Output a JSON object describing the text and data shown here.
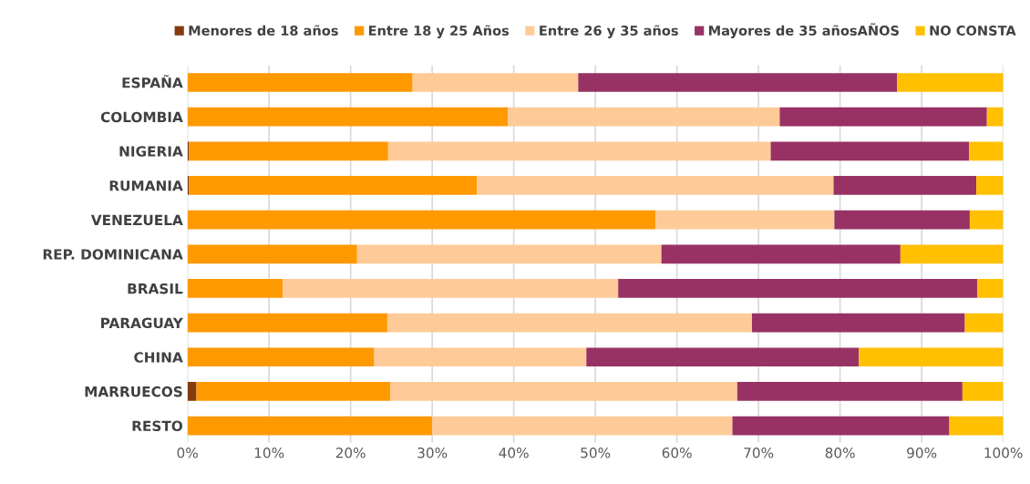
{
  "chart_data": {
    "type": "bar",
    "orientation": "horizontal",
    "stacked": true,
    "categories": [
      "ESPAÑA",
      "COLOMBIA",
      "NIGERIA",
      "RUMANIA",
      "VENEZUELA",
      "REP. DOMINICANA",
      "BRASIL",
      "PARAGUAY",
      "CHINA",
      "MARRUECOS",
      "RESTO"
    ],
    "series": [
      {
        "name": "Menores de 18 años",
        "color": "#843c0c",
        "values": [
          0,
          0,
          0.2,
          0.2,
          0,
          0,
          0,
          0,
          0,
          1.1,
          0
        ]
      },
      {
        "name": "Entre 18 y 25 Años",
        "color": "#ff9900",
        "values": [
          27.6,
          39.3,
          24.4,
          35.3,
          57.4,
          20.8,
          11.7,
          24.5,
          22.9,
          23.8,
          30.0
        ]
      },
      {
        "name": "Entre 26 y 35 años",
        "color": "#fecb98",
        "values": [
          20.3,
          33.3,
          46.9,
          43.7,
          21.9,
          37.3,
          41.1,
          44.7,
          26.0,
          42.5,
          36.8
        ]
      },
      {
        "name": "Mayores de 35 añosAÑOS",
        "color": "#983264",
        "values": [
          39.1,
          25.4,
          24.3,
          17.5,
          16.6,
          29.3,
          44.0,
          26.1,
          33.4,
          27.6,
          26.6
        ]
      },
      {
        "name": "NO CONSTA",
        "color": "#ffc000",
        "values": [
          13.0,
          2.0,
          4.2,
          3.3,
          4.1,
          12.6,
          3.2,
          4.7,
          17.7,
          5.0,
          6.6
        ]
      }
    ],
    "xlim": [
      0,
      100
    ],
    "xticks": [
      {
        "value": 0,
        "label": "0%"
      },
      {
        "value": 10,
        "label": "10%"
      },
      {
        "value": 20,
        "label": "20%"
      },
      {
        "value": 30,
        "label": "30%"
      },
      {
        "value": 40,
        "label": "40%"
      },
      {
        "value": 50,
        "label": "50%"
      },
      {
        "value": 60,
        "label": "60%"
      },
      {
        "value": 70,
        "label": "70%"
      },
      {
        "value": 80,
        "label": "80%"
      },
      {
        "value": 90,
        "label": "90%"
      },
      {
        "value": 100,
        "label": "100%"
      }
    ],
    "grid": "x",
    "legend": "top"
  }
}
